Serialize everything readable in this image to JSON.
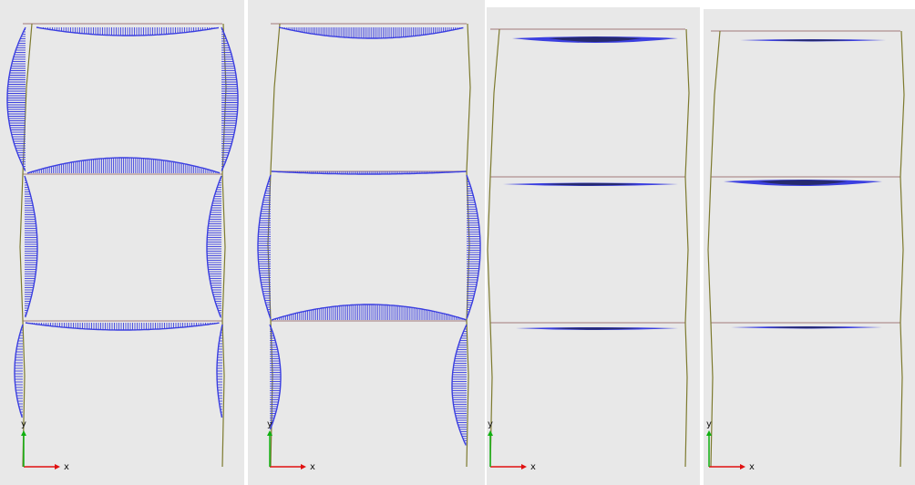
{
  "colors": {
    "background": "#e8e8e8",
    "column": "#7d7a2e",
    "beam": "#b09090",
    "arrow": "#3b3fe0",
    "arrow_dense": "#262a6e",
    "axis_x": "#e01010",
    "axis_y": "#10b010"
  },
  "axes": {
    "x": "x",
    "y": "y"
  },
  "panels": [
    {
      "id": "panel-1",
      "icon": "axis-triad-icon"
    },
    {
      "id": "panel-2",
      "icon": "axis-triad-icon"
    },
    {
      "id": "panel-3",
      "icon": "axis-triad-icon"
    },
    {
      "id": "panel-4",
      "icon": "axis-triad-icon"
    }
  ]
}
